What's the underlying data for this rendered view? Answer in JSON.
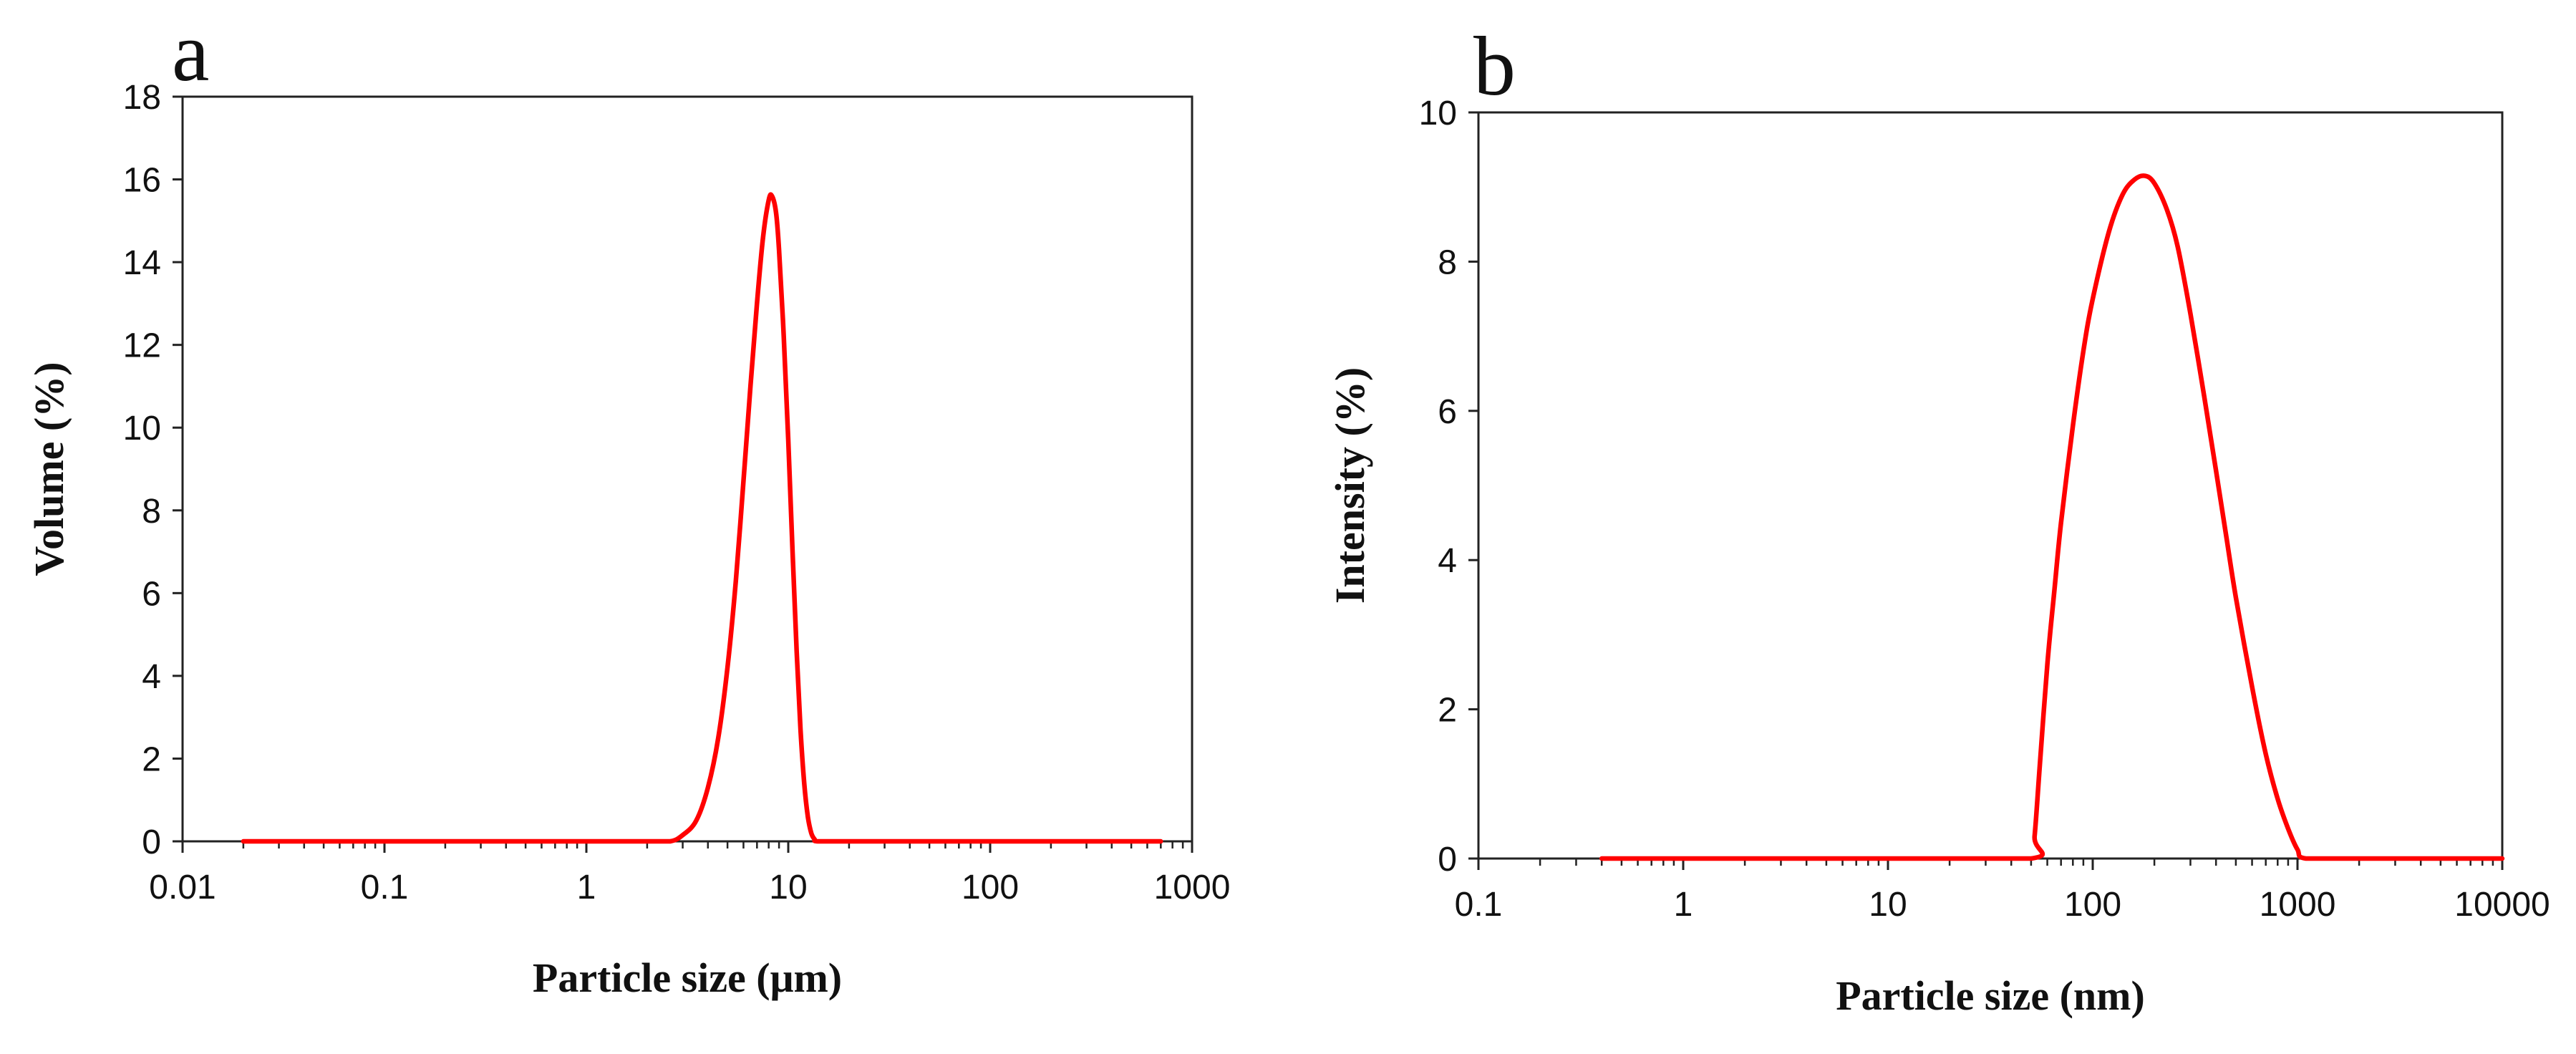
{
  "chart_data": [
    {
      "panel_label": "a",
      "type": "line",
      "xscale": "log",
      "xlim": [
        0.01,
        1000
      ],
      "ylim": [
        0,
        18
      ],
      "x_ticks": [
        0.01,
        0.1,
        1,
        10,
        100,
        1000
      ],
      "x_tick_labels": [
        "0.01",
        "0.1",
        "1",
        "10",
        "100",
        "1000"
      ],
      "y_ticks": [
        0,
        2,
        4,
        6,
        8,
        10,
        12,
        14,
        16,
        18
      ],
      "y_tick_labels": [
        "0",
        "2",
        "4",
        "6",
        "8",
        "10",
        "12",
        "14",
        "16",
        "18"
      ],
      "xlabel": "Particle size (μm)",
      "ylabel": "Volume  (%)",
      "grid": false,
      "line_color": "#ff0000",
      "series": [
        {
          "name": "Volume",
          "x": [
            0.02,
            0.1,
            1,
            2,
            2.6,
            3,
            3.5,
            4,
            4.5,
            5,
            5.5,
            6,
            6.5,
            7,
            7.5,
            8,
            8.3,
            8.7,
            9,
            9.5,
            10,
            10.5,
            11,
            11.5,
            12,
            12.5,
            13,
            13.5,
            14,
            20,
            100,
            700
          ],
          "y": [
            0,
            0,
            0,
            0,
            0,
            0.15,
            0.5,
            1.3,
            2.5,
            4.2,
            6.3,
            8.7,
            11.0,
            13.0,
            14.6,
            15.5,
            15.6,
            15.2,
            14.3,
            12.2,
            9.7,
            7.0,
            4.6,
            2.7,
            1.4,
            0.6,
            0.2,
            0.05,
            0,
            0,
            0,
            0
          ]
        }
      ]
    },
    {
      "panel_label": "b",
      "type": "line",
      "xscale": "log",
      "xlim": [
        0.1,
        10000
      ],
      "ylim": [
        0,
        10
      ],
      "x_ticks": [
        0.1,
        1,
        10,
        100,
        1000,
        10000
      ],
      "x_tick_labels": [
        "0.1",
        "1",
        "10",
        "100",
        "1000",
        "10000"
      ],
      "y_ticks": [
        0,
        2,
        4,
        6,
        8,
        10
      ],
      "y_tick_labels": [
        "0",
        "2",
        "4",
        "6",
        "8",
        "10"
      ],
      "xlabel": "Particle size (nm)",
      "ylabel": "Intensity  (%)",
      "grid": false,
      "line_color": "#ff0000",
      "series": [
        {
          "name": "Intensity",
          "x": [
            0.4,
            1,
            10,
            50,
            52,
            55,
            60,
            65,
            70,
            80,
            90,
            100,
            120,
            140,
            160,
            180,
            200,
            230,
            260,
            300,
            350,
            400,
            450,
            500,
            600,
            700,
            800,
            900,
            1000,
            1100,
            2000,
            10000
          ],
          "y": [
            0,
            0,
            0,
            0,
            0.3,
            1.2,
            2.6,
            3.6,
            4.5,
            5.8,
            6.8,
            7.5,
            8.4,
            8.9,
            9.1,
            9.15,
            9.05,
            8.7,
            8.2,
            7.3,
            6.2,
            5.2,
            4.3,
            3.5,
            2.3,
            1.4,
            0.8,
            0.4,
            0.12,
            0,
            0,
            0
          ]
        }
      ]
    }
  ]
}
